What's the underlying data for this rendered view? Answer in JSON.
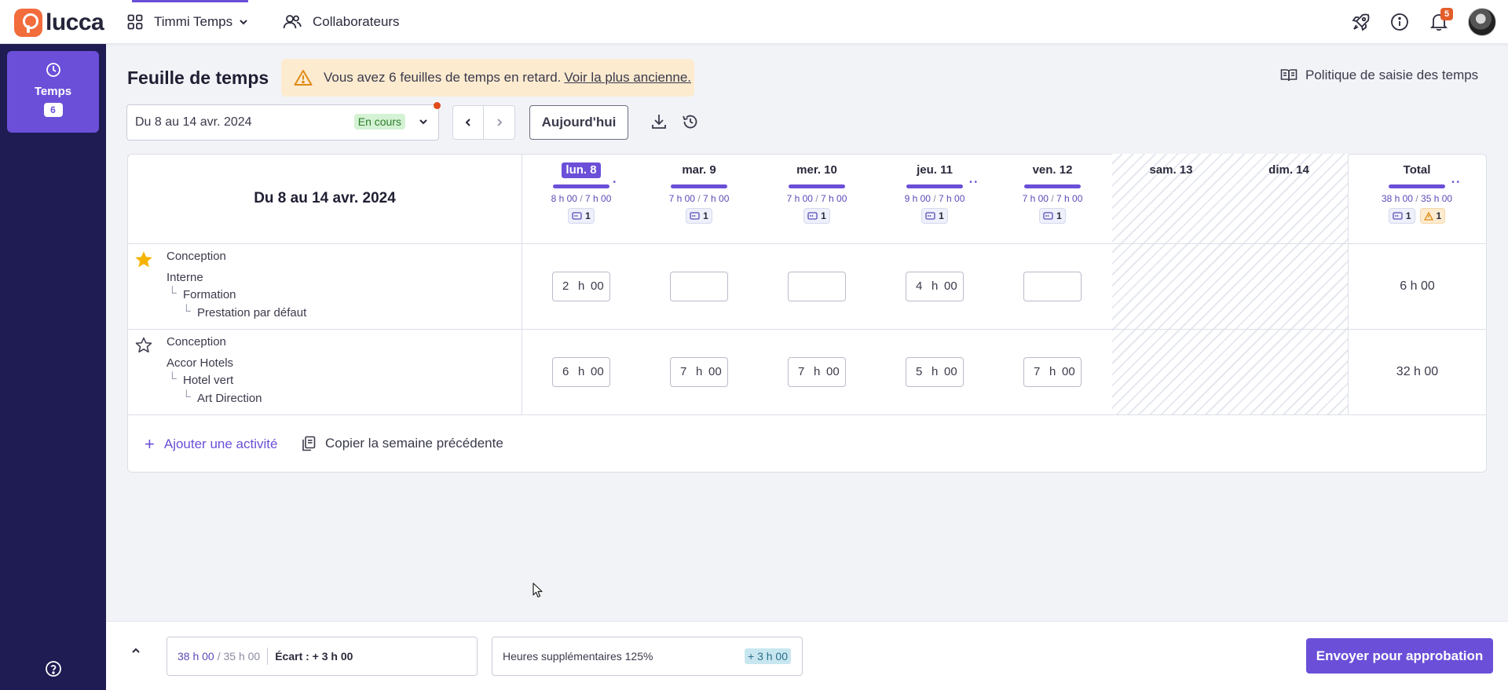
{
  "header": {
    "logo_text": "lucca",
    "app_name": "Timmi Temps",
    "collab_label": "Collaborateurs",
    "notif_count": "5"
  },
  "sidebar": {
    "items": [
      {
        "label": "Temps",
        "count": "6",
        "icon": "clock-icon"
      }
    ]
  },
  "page": {
    "title": "Feuille de temps",
    "alert_text": "Vous avez 6 feuilles de temps en retard.",
    "alert_link": "Voir la plus ancienne.",
    "policy_label": "Politique de saisie des temps"
  },
  "toolbar": {
    "period_value": "Du 8 au 14 avr. 2024",
    "period_status": "En cours",
    "today_label": "Aujourd'hui"
  },
  "sheet": {
    "period_label": "Du 8 au 14 avr. 2024",
    "days": [
      {
        "name": "lun. 8",
        "today": true,
        "done": "8 h 00",
        "target": "7 h 00",
        "chip": "1"
      },
      {
        "name": "mar. 9",
        "today": false,
        "done": "7 h 00",
        "target": "7 h 00",
        "chip": "1"
      },
      {
        "name": "mer. 10",
        "today": false,
        "done": "7 h 00",
        "target": "7 h 00",
        "chip": "1"
      },
      {
        "name": "jeu. 11",
        "today": false,
        "done": "9 h 00",
        "target": "7 h 00",
        "chip": "1"
      },
      {
        "name": "ven. 12",
        "today": false,
        "done": "7 h 00",
        "target": "7 h 00",
        "chip": "1"
      },
      {
        "name": "sam. 13",
        "weekend": true
      },
      {
        "name": "dim. 14",
        "weekend": true
      }
    ],
    "total": {
      "name": "Total",
      "done": "38 h 00",
      "target": "35 h 00",
      "chip": "1",
      "warn_chip": "1"
    },
    "rows": [
      {
        "category": "Conception",
        "client": "Interne",
        "project": "Formation",
        "task": "Prestation par défaut",
        "favorite": true,
        "cells": [
          {
            "h": "2",
            "u": "h",
            "m": "00"
          },
          {
            "h": "",
            "u": "",
            "m": ""
          },
          {
            "h": "",
            "u": "",
            "m": ""
          },
          {
            "h": "4",
            "u": "h",
            "m": "00"
          },
          {
            "h": "",
            "u": "",
            "m": ""
          }
        ],
        "total": "6 h 00"
      },
      {
        "category": "Conception",
        "client": "Accor Hotels",
        "project": "Hotel vert",
        "task": "Art Direction",
        "favorite": false,
        "cells": [
          {
            "h": "6",
            "u": "h",
            "m": "00"
          },
          {
            "h": "7",
            "u": "h",
            "m": "00"
          },
          {
            "h": "7",
            "u": "h",
            "m": "00"
          },
          {
            "h": "5",
            "u": "h",
            "m": "00"
          },
          {
            "h": "7",
            "u": "h",
            "m": "00"
          }
        ],
        "total": "32 h 00"
      }
    ],
    "add_activity": "Ajouter une activité",
    "copy_week": "Copier la semaine précédente"
  },
  "footer": {
    "current": "38 h 00",
    "expected": "/ 35 h 00",
    "gap": "Écart : + 3 h 00",
    "overtime_label": "Heures supplémentaires 125%",
    "overtime_value": "+ 3 h 00",
    "send_label": "Envoyer pour approbation"
  },
  "colors": {
    "accent": "#6b4fd8",
    "sidebar": "#1e1c52",
    "alert_bg": "#fdebd0",
    "status_green": "#d4f2d4",
    "logo": "#f26c3c"
  }
}
